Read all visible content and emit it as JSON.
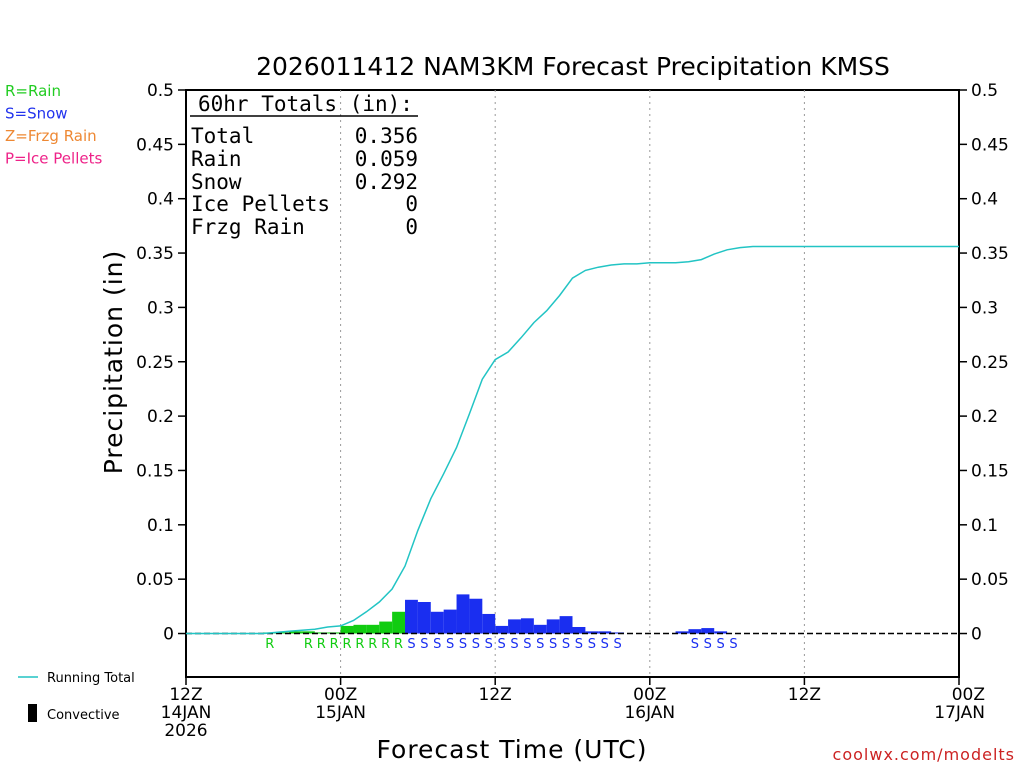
{
  "chart_data": {
    "type": "bar",
    "title": "2026011412 NAM3KM Forecast Precipitation KMSS",
    "xlabel": "Forecast Time (UTC)",
    "ylabel": "Precipitation (in)",
    "ylim": [
      -0.04,
      0.5
    ],
    "xlim": [
      0,
      60
    ],
    "yticks": [
      0,
      0.05,
      0.1,
      0.15,
      0.2,
      0.25,
      0.3,
      0.35,
      0.4,
      0.45,
      0.5
    ],
    "ytick_labels": [
      "0",
      "0.05",
      "0.1",
      "0.15",
      "0.2",
      "0.25",
      "0.3",
      "0.35",
      "0.4",
      "0.45",
      "0.5"
    ],
    "xticks": [
      {
        "hour": 0,
        "lines": [
          "12Z",
          "14JAN",
          "2026"
        ]
      },
      {
        "hour": 12,
        "lines": [
          "00Z",
          "15JAN"
        ]
      },
      {
        "hour": 24,
        "lines": [
          "12Z"
        ]
      },
      {
        "hour": 36,
        "lines": [
          "00Z",
          "16JAN"
        ]
      },
      {
        "hour": 48,
        "lines": [
          "12Z"
        ]
      },
      {
        "hour": 60,
        "lines": [
          "00Z",
          "17JAN"
        ]
      }
    ],
    "totals_box": {
      "header": "60hr Totals (in):",
      "rows": [
        {
          "label": "Total",
          "value": "0.356"
        },
        {
          "label": "Rain",
          "value": "0.059"
        },
        {
          "label": "Snow",
          "value": "0.292"
        },
        {
          "label": "Ice Pellets",
          "value": "0"
        },
        {
          "label": "Frzg Rain",
          "value": "0"
        }
      ]
    },
    "type_legend": [
      {
        "text": "R=Rain",
        "color": "#22cc22"
      },
      {
        "text": "S=Snow",
        "color": "#2233ee"
      },
      {
        "text": "Z=Frzg Rain",
        "color": "#ee8833"
      },
      {
        "text": "P=Ice Pellets",
        "color": "#ee2288"
      }
    ],
    "series_legend": [
      {
        "name": "Running Total",
        "color": "#22c4c4"
      },
      {
        "name": "Convective",
        "color": "#000000"
      }
    ],
    "running_total": {
      "name": "Running Total",
      "color": "#22c4c4",
      "x": [
        0,
        2,
        4,
        6,
        7,
        8,
        9,
        10,
        11,
        12,
        13,
        14,
        15,
        16,
        17,
        18,
        19,
        20,
        21,
        22,
        23,
        24,
        25,
        26,
        27,
        28,
        29,
        30,
        31,
        32,
        33,
        34,
        35,
        36,
        37,
        38,
        39,
        40,
        41,
        42,
        43,
        44,
        45,
        46,
        47,
        48,
        50,
        52,
        54,
        56,
        58,
        60
      ],
      "y": [
        0,
        0,
        0,
        0,
        0.001,
        0.002,
        0.003,
        0.004,
        0.006,
        0.007,
        0.012,
        0.02,
        0.029,
        0.041,
        0.062,
        0.095,
        0.124,
        0.147,
        0.171,
        0.202,
        0.234,
        0.252,
        0.259,
        0.272,
        0.286,
        0.297,
        0.311,
        0.327,
        0.334,
        0.337,
        0.339,
        0.34,
        0.34,
        0.341,
        0.341,
        0.341,
        0.342,
        0.344,
        0.349,
        0.353,
        0.355,
        0.356,
        0.356,
        0.356,
        0.356,
        0.356,
        0.356,
        0.356,
        0.356,
        0.356,
        0.356,
        0.356
      ]
    },
    "bars": [
      {
        "hour": 7,
        "value": 0.001,
        "type": "rain"
      },
      {
        "hour": 8,
        "value": 0.001,
        "type": "rain"
      },
      {
        "hour": 9,
        "value": 0.002,
        "type": "rain"
      },
      {
        "hour": 10,
        "value": 0.002,
        "type": "rain"
      },
      {
        "hour": 11,
        "value": 0.001,
        "type": "rain"
      },
      {
        "hour": 12,
        "value": 0.001,
        "type": "rain"
      },
      {
        "hour": 13,
        "value": 0.007,
        "type": "rain"
      },
      {
        "hour": 14,
        "value": 0.008,
        "type": "rain"
      },
      {
        "hour": 15,
        "value": 0.008,
        "type": "rain"
      },
      {
        "hour": 16,
        "value": 0.011,
        "type": "rain"
      },
      {
        "hour": 17,
        "value": 0.02,
        "type": "rain"
      },
      {
        "hour": 18,
        "value": 0.031,
        "type": "snow"
      },
      {
        "hour": 19,
        "value": 0.029,
        "type": "snow"
      },
      {
        "hour": 20,
        "value": 0.02,
        "type": "snow"
      },
      {
        "hour": 21,
        "value": 0.022,
        "type": "snow"
      },
      {
        "hour": 22,
        "value": 0.036,
        "type": "snow"
      },
      {
        "hour": 23,
        "value": 0.032,
        "type": "snow"
      },
      {
        "hour": 24,
        "value": 0.018,
        "type": "snow"
      },
      {
        "hour": 25,
        "value": 0.007,
        "type": "snow"
      },
      {
        "hour": 26,
        "value": 0.013,
        "type": "snow"
      },
      {
        "hour": 27,
        "value": 0.014,
        "type": "snow"
      },
      {
        "hour": 28,
        "value": 0.008,
        "type": "snow"
      },
      {
        "hour": 29,
        "value": 0.013,
        "type": "snow"
      },
      {
        "hour": 30,
        "value": 0.016,
        "type": "snow"
      },
      {
        "hour": 31,
        "value": 0.006,
        "type": "snow"
      },
      {
        "hour": 32,
        "value": 0.002,
        "type": "snow"
      },
      {
        "hour": 33,
        "value": 0.002,
        "type": "snow"
      },
      {
        "hour": 34,
        "value": 0.001,
        "type": "snow"
      },
      {
        "hour": 39,
        "value": 0.002,
        "type": "snow"
      },
      {
        "hour": 40,
        "value": 0.004,
        "type": "snow"
      },
      {
        "hour": 41,
        "value": 0.005,
        "type": "snow"
      },
      {
        "hour": 42,
        "value": 0.002,
        "type": "snow"
      }
    ],
    "type_markers": [
      {
        "hour": 7,
        "letter": "R",
        "type": "rain"
      },
      {
        "hour": 10,
        "letter": "R",
        "type": "rain"
      },
      {
        "hour": 11,
        "letter": "R",
        "type": "rain"
      },
      {
        "hour": 12,
        "letter": "R",
        "type": "rain"
      },
      {
        "hour": 13,
        "letter": "R",
        "type": "rain"
      },
      {
        "hour": 14,
        "letter": "R",
        "type": "rain"
      },
      {
        "hour": 15,
        "letter": "R",
        "type": "rain"
      },
      {
        "hour": 16,
        "letter": "R",
        "type": "rain"
      },
      {
        "hour": 17,
        "letter": "R",
        "type": "rain"
      },
      {
        "hour": 18,
        "letter": "S",
        "type": "snow"
      },
      {
        "hour": 19,
        "letter": "S",
        "type": "snow"
      },
      {
        "hour": 20,
        "letter": "S",
        "type": "snow"
      },
      {
        "hour": 21,
        "letter": "S",
        "type": "snow"
      },
      {
        "hour": 22,
        "letter": "S",
        "type": "snow"
      },
      {
        "hour": 23,
        "letter": "S",
        "type": "snow"
      },
      {
        "hour": 24,
        "letter": "S",
        "type": "snow"
      },
      {
        "hour": 25,
        "letter": "S",
        "type": "snow"
      },
      {
        "hour": 26,
        "letter": "S",
        "type": "snow"
      },
      {
        "hour": 27,
        "letter": "S",
        "type": "snow"
      },
      {
        "hour": 28,
        "letter": "S",
        "type": "snow"
      },
      {
        "hour": 29,
        "letter": "S",
        "type": "snow"
      },
      {
        "hour": 30,
        "letter": "S",
        "type": "snow"
      },
      {
        "hour": 31,
        "letter": "S",
        "type": "snow"
      },
      {
        "hour": 32,
        "letter": "S",
        "type": "snow"
      },
      {
        "hour": 33,
        "letter": "S",
        "type": "snow"
      },
      {
        "hour": 34,
        "letter": "S",
        "type": "snow"
      },
      {
        "hour": 40,
        "letter": "S",
        "type": "snow"
      },
      {
        "hour": 41,
        "letter": "S",
        "type": "snow"
      },
      {
        "hour": 42,
        "letter": "S",
        "type": "snow"
      },
      {
        "hour": 43,
        "letter": "S",
        "type": "snow"
      }
    ],
    "colors": {
      "rain": "#11cc11",
      "snow": "#1a2ef0",
      "axis": "#000000",
      "grid": "#999999"
    },
    "watermark": "coolwx.com/modelts",
    "watermark_color": "#cc2222"
  }
}
